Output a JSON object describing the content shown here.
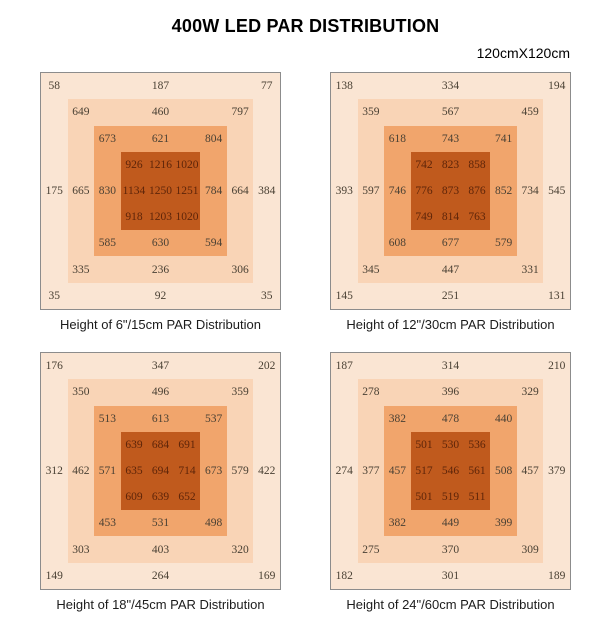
{
  "title": "400W LED PAR DISTRIBUTION",
  "coverage_label": "120cmX120cm",
  "colors": {
    "ring1": "#FAE5D3",
    "ring2": "#F9D4B6",
    "ring3": "#F1A56C",
    "core": "#C05A1D",
    "number_text": "#4A4134",
    "core_number_text": "#5E2509",
    "panel_border": "#8C8C8C",
    "title_text": "#000000"
  },
  "chart_data": [
    {
      "type": "heatmap",
      "caption": "Height of 6\"/15cm PAR Distribution",
      "layout": "concentric-rings-9x9",
      "rows": [
        [
          58,
          187,
          77
        ],
        [
          649,
          460,
          797
        ],
        [
          673,
          621,
          804
        ],
        [
          926,
          1216,
          1020
        ],
        [
          175,
          665,
          830,
          1134,
          1250,
          1251,
          784,
          664,
          384
        ],
        [
          918,
          1203,
          1020
        ],
        [
          585,
          630,
          594
        ],
        [
          335,
          236,
          306
        ],
        [
          35,
          92,
          35
        ]
      ]
    },
    {
      "type": "heatmap",
      "caption": "Height of 12\"/30cm PAR Distribution",
      "layout": "concentric-rings-9x9",
      "rows": [
        [
          138,
          334,
          194
        ],
        [
          359,
          567,
          459
        ],
        [
          618,
          743,
          741
        ],
        [
          742,
          823,
          858
        ],
        [
          393,
          597,
          746,
          776,
          873,
          876,
          852,
          734,
          545
        ],
        [
          749,
          814,
          763
        ],
        [
          608,
          677,
          579
        ],
        [
          345,
          447,
          331
        ],
        [
          145,
          251,
          131
        ]
      ]
    },
    {
      "type": "heatmap",
      "caption": "Height of 18\"/45cm PAR Distribution",
      "layout": "concentric-rings-9x9",
      "rows": [
        [
          176,
          347,
          202
        ],
        [
          350,
          496,
          359
        ],
        [
          513,
          613,
          537
        ],
        [
          639,
          684,
          691
        ],
        [
          312,
          462,
          571,
          635,
          694,
          714,
          673,
          579,
          422
        ],
        [
          609,
          639,
          652
        ],
        [
          453,
          531,
          498
        ],
        [
          303,
          403,
          320
        ],
        [
          149,
          264,
          169
        ]
      ]
    },
    {
      "type": "heatmap",
      "caption": "Height of 24\"/60cm PAR Distribution",
      "layout": "concentric-rings-9x9",
      "rows": [
        [
          187,
          314,
          210
        ],
        [
          278,
          396,
          329
        ],
        [
          382,
          478,
          440
        ],
        [
          501,
          530,
          536
        ],
        [
          274,
          377,
          457,
          517,
          546,
          561,
          508,
          457,
          379
        ],
        [
          501,
          519,
          511
        ],
        [
          382,
          449,
          399
        ],
        [
          275,
          370,
          309
        ],
        [
          182,
          301,
          189
        ]
      ]
    }
  ]
}
